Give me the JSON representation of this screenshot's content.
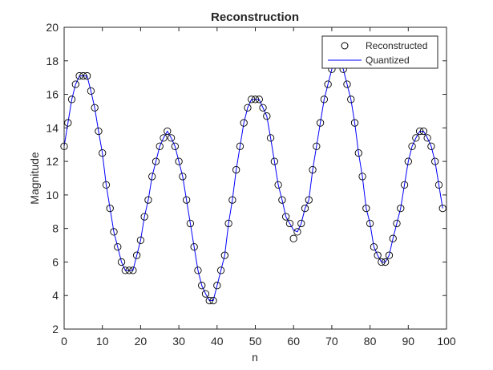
{
  "chart_data": {
    "type": "line",
    "title": "Reconstruction",
    "xlabel": "n",
    "ylabel": "Magnitude",
    "xlim": [
      0,
      100
    ],
    "ylim": [
      2,
      20
    ],
    "xticks": [
      0,
      10,
      20,
      30,
      40,
      50,
      60,
      70,
      80,
      90,
      100
    ],
    "yticks": [
      2,
      4,
      6,
      8,
      10,
      12,
      14,
      16,
      18,
      20
    ],
    "grid": false,
    "legend": {
      "position": "top-right"
    },
    "x": [
      0,
      1,
      2,
      3,
      4,
      5,
      6,
      7,
      8,
      9,
      10,
      11,
      12,
      13,
      14,
      15,
      16,
      17,
      18,
      19,
      20,
      21,
      22,
      23,
      24,
      25,
      26,
      27,
      28,
      29,
      30,
      31,
      32,
      33,
      34,
      35,
      36,
      37,
      38,
      39,
      40,
      41,
      42,
      43,
      44,
      45,
      46,
      47,
      48,
      49,
      50,
      51,
      52,
      53,
      54,
      55,
      56,
      57,
      58,
      59,
      60,
      61,
      62,
      63,
      64,
      65,
      66,
      67,
      68,
      69,
      70,
      71,
      72,
      73,
      74,
      75,
      76,
      77,
      78,
      79,
      80,
      81,
      82,
      83,
      84,
      85,
      86,
      87,
      88,
      89,
      90,
      91,
      92,
      93,
      94,
      95,
      96,
      97,
      98,
      99
    ],
    "series": [
      {
        "name": "Reconstructed",
        "style": "markers",
        "marker": "circle",
        "color": "#000000",
        "values": [
          12.9,
          14.3,
          15.7,
          16.6,
          17.1,
          17.1,
          17.1,
          16.2,
          15.2,
          13.8,
          12.5,
          10.6,
          9.2,
          7.8,
          6.9,
          6.0,
          5.5,
          5.5,
          5.5,
          6.4,
          7.3,
          8.7,
          9.7,
          11.1,
          12.0,
          12.9,
          13.4,
          13.8,
          13.4,
          12.9,
          12.0,
          11.1,
          9.7,
          8.3,
          6.9,
          5.5,
          4.6,
          4.1,
          3.7,
          3.7,
          4.6,
          5.5,
          6.4,
          8.3,
          9.7,
          11.5,
          12.9,
          14.3,
          15.2,
          15.7,
          15.7,
          15.7,
          15.2,
          14.7,
          13.4,
          12.0,
          10.6,
          9.7,
          8.7,
          8.3,
          7.4,
          7.8,
          8.3,
          9.2,
          9.7,
          11.5,
          12.9,
          14.3,
          15.7,
          16.6,
          17.5,
          18.0,
          18.0,
          17.5,
          16.6,
          15.7,
          14.3,
          12.5,
          11.1,
          9.2,
          8.3,
          6.9,
          6.4,
          6.0,
          6.0,
          6.4,
          7.4,
          8.3,
          9.2,
          10.6,
          12.0,
          12.9,
          13.4,
          13.8,
          13.8,
          13.4,
          12.9,
          12.0,
          10.6,
          9.2
        ]
      },
      {
        "name": "Quantized",
        "style": "line",
        "color": "#0000ff",
        "values": [
          12.9,
          14.3,
          15.7,
          16.6,
          17.1,
          17.1,
          17.1,
          16.2,
          15.2,
          13.8,
          12.5,
          10.6,
          9.2,
          7.8,
          6.9,
          6.0,
          5.5,
          5.5,
          5.5,
          6.4,
          7.3,
          8.7,
          9.7,
          11.1,
          12.0,
          12.9,
          13.4,
          13.8,
          13.4,
          12.9,
          12.0,
          11.1,
          9.7,
          8.3,
          6.9,
          5.5,
          4.6,
          4.1,
          3.7,
          3.7,
          4.6,
          5.5,
          6.4,
          8.3,
          9.7,
          11.5,
          12.9,
          14.3,
          15.2,
          15.7,
          15.7,
          15.7,
          15.2,
          14.7,
          13.4,
          12.0,
          10.6,
          9.7,
          8.7,
          8.3,
          7.9,
          7.8,
          8.3,
          9.2,
          9.7,
          11.5,
          12.9,
          14.3,
          15.7,
          16.6,
          17.5,
          18.0,
          18.0,
          17.5,
          16.6,
          15.7,
          14.3,
          12.5,
          11.1,
          9.2,
          8.3,
          6.9,
          6.4,
          6.0,
          6.0,
          6.4,
          7.4,
          8.3,
          9.2,
          10.6,
          12.0,
          12.9,
          13.4,
          13.8,
          13.8,
          13.4,
          12.9,
          12.0,
          10.6,
          9.2
        ]
      }
    ]
  }
}
